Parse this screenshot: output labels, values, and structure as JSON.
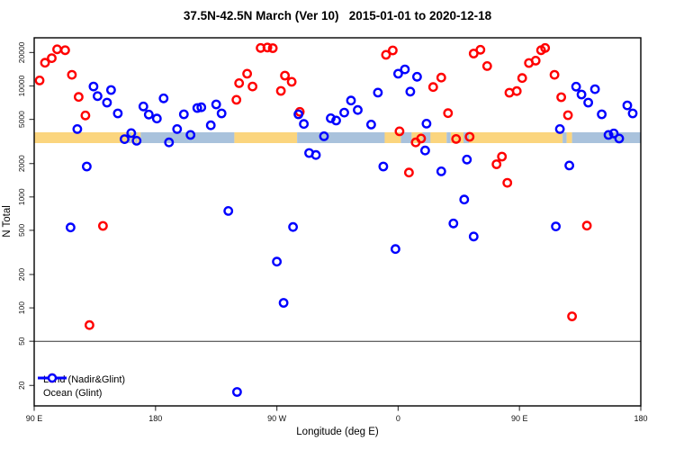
{
  "title": "37.5N-42.5N March (Ver 10)   2015-01-01 to 2020-12-18",
  "legend": {
    "items": [
      {
        "label": "Land (Nadir&Glint)",
        "color": "#ff0000"
      },
      {
        "label": "Ocean (Glint)",
        "color": "#0000ff"
      }
    ]
  },
  "chart_data": {
    "type": "scatter",
    "title": "37.5N-42.5N March (Ver 10)   2015-01-01 to 2020-12-18",
    "xlabel": "Longitude (deg E)",
    "ylabel": "N Total",
    "grid": false,
    "legend_position": "bottom-left",
    "y_scale": "log",
    "y_ticks": [
      20000,
      10000,
      5000,
      2000,
      1000,
      500,
      200,
      100,
      50,
      20
    ],
    "y_range": [
      13,
      27500
    ],
    "x_range": [
      90,
      540
    ],
    "x_ticks": [
      {
        "axis_pos": 90,
        "label": "90 E"
      },
      {
        "axis_pos": 180,
        "label": "180"
      },
      {
        "axis_pos": 270,
        "label": "90 W"
      },
      {
        "axis_pos": 360,
        "label": "0"
      },
      {
        "axis_pos": 450,
        "label": "90 E"
      },
      {
        "axis_pos": 540,
        "label": "180"
      }
    ],
    "reference_line_y": 50,
    "colors": {
      "land_series": "#ff0000",
      "ocean_series": "#0000ff",
      "band_land": "#fbd57e",
      "band_ocean": "#a9c2dc",
      "frame": "#000000",
      "reference_line": "#333333"
    },
    "land_ocean_band": {
      "note": "coastline strip drawn across plot near N=3200",
      "y_value": 3200,
      "segments": [
        [
          90,
          160,
          "land"
        ],
        [
          160,
          162,
          "ocean"
        ],
        [
          162,
          165,
          "land"
        ],
        [
          165,
          166.5,
          "ocean"
        ],
        [
          166.5,
          169,
          "land"
        ],
        [
          169,
          238.5,
          "ocean"
        ],
        [
          238.5,
          285,
          "land"
        ],
        [
          285,
          350,
          "ocean"
        ],
        [
          350,
          362,
          "land"
        ],
        [
          362,
          370,
          "ocean"
        ],
        [
          370,
          378,
          "land"
        ],
        [
          378,
          384,
          "ocean"
        ],
        [
          384,
          396,
          "land"
        ],
        [
          396,
          399,
          "ocean"
        ],
        [
          399,
          408.5,
          "land"
        ],
        [
          408.5,
          412.5,
          "ocean"
        ],
        [
          412.5,
          482,
          "land"
        ],
        [
          482,
          485,
          "ocean"
        ],
        [
          485,
          489,
          "land"
        ],
        [
          489,
          540,
          "ocean"
        ]
      ]
    },
    "series": [
      {
        "name": "Land (Nadir&Glint)",
        "key": "land",
        "points": [
          [
            94,
            11200
          ],
          [
            98,
            16200
          ],
          [
            103,
            17800
          ],
          [
            107,
            21400
          ],
          [
            113,
            21000
          ],
          [
            118,
            12600
          ],
          [
            123,
            7960
          ],
          [
            128,
            5420
          ],
          [
            141,
            548
          ],
          [
            131,
            70
          ],
          [
            240,
            7500
          ],
          [
            242,
            10600
          ],
          [
            248,
            12900
          ],
          [
            252,
            9900
          ],
          [
            258,
            22000
          ],
          [
            263,
            22200
          ],
          [
            267,
            21900
          ],
          [
            273,
            9020
          ],
          [
            276,
            12400
          ],
          [
            281,
            10900
          ],
          [
            287,
            5840
          ],
          [
            351,
            19100
          ],
          [
            356,
            20900
          ],
          [
            361,
            3900
          ],
          [
            368,
            1660
          ],
          [
            373,
            3100
          ],
          [
            377,
            3360
          ],
          [
            386,
            9780
          ],
          [
            392,
            11900
          ],
          [
            397,
            5690
          ],
          [
            403,
            3330
          ],
          [
            413,
            3480
          ],
          [
            416,
            19600
          ],
          [
            421,
            21200
          ],
          [
            426,
            15100
          ],
          [
            433,
            1970
          ],
          [
            437,
            2310
          ],
          [
            441,
            1340
          ],
          [
            442.5,
            8700
          ],
          [
            448,
            9000
          ],
          [
            452,
            11800
          ],
          [
            457,
            16100
          ],
          [
            462,
            16900
          ],
          [
            466,
            21000
          ],
          [
            469,
            22000
          ],
          [
            476,
            12600
          ],
          [
            481,
            7920
          ],
          [
            486,
            5450
          ],
          [
            500,
            551
          ],
          [
            489,
            84
          ]
        ]
      },
      {
        "name": "Ocean (Glint)",
        "key": "ocean",
        "points": [
          [
            134,
            9900
          ],
          [
            147,
            9200
          ],
          [
            137,
            8100
          ],
          [
            144,
            7080
          ],
          [
            152,
            5660
          ],
          [
            122,
            4090
          ],
          [
            157,
            3320
          ],
          [
            162,
            3760
          ],
          [
            166,
            3210
          ],
          [
            129,
            1880
          ],
          [
            117,
            531
          ],
          [
            171,
            6530
          ],
          [
            175,
            5520
          ],
          [
            181,
            5090
          ],
          [
            186,
            7730
          ],
          [
            196,
            4090
          ],
          [
            190,
            3100
          ],
          [
            201,
            5550
          ],
          [
            206,
            3620
          ],
          [
            211,
            6330
          ],
          [
            214,
            6420
          ],
          [
            221,
            4420
          ],
          [
            225,
            6820
          ],
          [
            229,
            5660
          ],
          [
            234,
            748
          ],
          [
            240.5,
            17.5
          ],
          [
            286,
            5550
          ],
          [
            290,
            4550
          ],
          [
            310,
            5120
          ],
          [
            314,
            4880
          ],
          [
            305,
            3520
          ],
          [
            294,
            2490
          ],
          [
            299,
            2390
          ],
          [
            282,
            536
          ],
          [
            270,
            261
          ],
          [
            275,
            111
          ],
          [
            320,
            5750
          ],
          [
            325,
            7390
          ],
          [
            330,
            6080
          ],
          [
            340,
            4490
          ],
          [
            345,
            8710
          ],
          [
            360,
            12900
          ],
          [
            365,
            14100
          ],
          [
            374,
            12100
          ],
          [
            369,
            8900
          ],
          [
            381,
            4570
          ],
          [
            380,
            2620
          ],
          [
            349,
            1880
          ],
          [
            392,
            1700
          ],
          [
            358,
            339
          ],
          [
            411,
            2170
          ],
          [
            409,
            948
          ],
          [
            401,
            577
          ],
          [
            416,
            440
          ],
          [
            492,
            9850
          ],
          [
            496,
            8380
          ],
          [
            506,
            9360
          ],
          [
            501,
            7080
          ],
          [
            511,
            5550
          ],
          [
            530,
            6680
          ],
          [
            534,
            5660
          ],
          [
            480,
            4090
          ],
          [
            516,
            3620
          ],
          [
            520,
            3730
          ],
          [
            524,
            3360
          ],
          [
            487,
            1920
          ],
          [
            477,
            542
          ]
        ]
      }
    ]
  }
}
